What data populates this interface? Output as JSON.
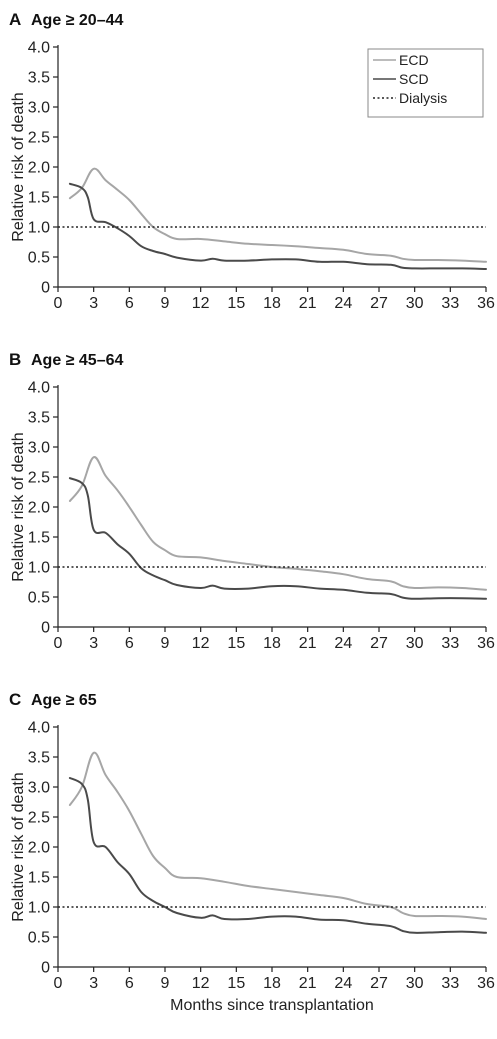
{
  "chart_data": [
    {
      "type": "line",
      "panel": "A",
      "title": "Age ≥ 20–44",
      "xlabel": "",
      "ylabel": "Relative risk of death",
      "xlim": [
        0,
        36
      ],
      "ylim": [
        0,
        4.0
      ],
      "xticks": [
        0,
        3,
        6,
        9,
        12,
        15,
        18,
        21,
        24,
        27,
        30,
        33,
        36
      ],
      "yticks": [
        "0",
        "0.5",
        "1.0",
        "1.5",
        "2.0",
        "2.5",
        "3.0",
        "3.5",
        "4.0"
      ],
      "legend": {
        "placement": "top-right",
        "entries": [
          "ECD",
          "SCD",
          "Dialysis"
        ]
      },
      "series": [
        {
          "name": "ECD",
          "color": "#a6a6a6",
          "style": "solid",
          "x": [
            1,
            2,
            3,
            4,
            5,
            6,
            7,
            8,
            9,
            10,
            12,
            14,
            16,
            18,
            20,
            22,
            24,
            26,
            28,
            29,
            30,
            32,
            34,
            36
          ],
          "y": [
            1.48,
            1.65,
            1.97,
            1.78,
            1.62,
            1.45,
            1.22,
            1.0,
            0.88,
            0.8,
            0.8,
            0.76,
            0.72,
            0.7,
            0.68,
            0.65,
            0.62,
            0.55,
            0.52,
            0.47,
            0.45,
            0.45,
            0.44,
            0.42
          ]
        },
        {
          "name": "SCD",
          "color": "#4a4a4a",
          "style": "solid",
          "x": [
            1,
            2,
            2.5,
            3,
            4,
            5,
            6,
            7,
            8,
            9,
            10,
            12,
            13,
            14,
            16,
            18,
            20,
            22,
            24,
            26,
            28,
            29,
            30,
            32,
            34,
            36
          ],
          "y": [
            1.72,
            1.65,
            1.5,
            1.13,
            1.08,
            0.98,
            0.85,
            0.68,
            0.6,
            0.55,
            0.49,
            0.44,
            0.47,
            0.44,
            0.44,
            0.46,
            0.46,
            0.42,
            0.42,
            0.38,
            0.37,
            0.32,
            0.31,
            0.31,
            0.31,
            0.3
          ]
        },
        {
          "name": "Dialysis",
          "color": "#222222",
          "style": "dotted",
          "x": [
            0,
            36
          ],
          "y": [
            1.0,
            1.0
          ]
        }
      ]
    },
    {
      "type": "line",
      "panel": "B",
      "title": "Age ≥ 45–64",
      "xlabel": "",
      "ylabel": "Relative risk of death",
      "xlim": [
        0,
        36
      ],
      "ylim": [
        0,
        4.0
      ],
      "xticks": [
        0,
        3,
        6,
        9,
        12,
        15,
        18,
        21,
        24,
        27,
        30,
        33,
        36
      ],
      "yticks": [
        "0",
        "0.5",
        "1.0",
        "1.5",
        "2.0",
        "2.5",
        "3.0",
        "3.5",
        "4.0"
      ],
      "series": [
        {
          "name": "ECD",
          "color": "#a6a6a6",
          "style": "solid",
          "x": [
            1,
            2,
            3,
            4,
            5,
            6,
            7,
            8,
            9,
            10,
            12,
            14,
            16,
            18,
            20,
            22,
            24,
            26,
            28,
            29,
            30,
            32,
            34,
            36
          ],
          "y": [
            2.1,
            2.35,
            2.83,
            2.52,
            2.28,
            2.0,
            1.7,
            1.42,
            1.28,
            1.18,
            1.16,
            1.1,
            1.05,
            1.0,
            0.97,
            0.93,
            0.88,
            0.8,
            0.76,
            0.68,
            0.65,
            0.66,
            0.65,
            0.62
          ]
        },
        {
          "name": "SCD",
          "color": "#4a4a4a",
          "style": "solid",
          "x": [
            1,
            2,
            2.5,
            3,
            4,
            5,
            6,
            7,
            8,
            9,
            10,
            12,
            13,
            14,
            16,
            18,
            20,
            22,
            24,
            26,
            28,
            29,
            30,
            32,
            34,
            36
          ],
          "y": [
            2.48,
            2.4,
            2.2,
            1.62,
            1.57,
            1.38,
            1.22,
            0.98,
            0.86,
            0.78,
            0.7,
            0.65,
            0.69,
            0.64,
            0.64,
            0.68,
            0.68,
            0.64,
            0.62,
            0.57,
            0.55,
            0.49,
            0.47,
            0.48,
            0.48,
            0.47
          ]
        },
        {
          "name": "Dialysis",
          "color": "#222222",
          "style": "dotted",
          "x": [
            0,
            36
          ],
          "y": [
            1.0,
            1.0
          ]
        }
      ]
    },
    {
      "type": "line",
      "panel": "C",
      "title": "Age ≥ 65",
      "xlabel": "Months since transplantation",
      "ylabel": "Relative risk of death",
      "xlim": [
        0,
        36
      ],
      "ylim": [
        0,
        4.0
      ],
      "xticks": [
        0,
        3,
        6,
        9,
        12,
        15,
        18,
        21,
        24,
        27,
        30,
        33,
        36
      ],
      "yticks": [
        "0",
        "0.5",
        "1.0",
        "1.5",
        "2.0",
        "2.5",
        "3.0",
        "3.5",
        "4.0"
      ],
      "series": [
        {
          "name": "ECD",
          "color": "#a6a6a6",
          "style": "solid",
          "x": [
            1,
            2,
            3,
            4,
            5,
            6,
            7,
            8,
            9,
            10,
            12,
            14,
            16,
            18,
            20,
            22,
            24,
            26,
            28,
            29,
            30,
            32,
            34,
            36
          ],
          "y": [
            2.7,
            3.0,
            3.57,
            3.2,
            2.92,
            2.6,
            2.22,
            1.85,
            1.65,
            1.5,
            1.48,
            1.42,
            1.35,
            1.3,
            1.25,
            1.2,
            1.15,
            1.05,
            1.0,
            0.9,
            0.85,
            0.85,
            0.84,
            0.8
          ]
        },
        {
          "name": "SCD",
          "color": "#4a4a4a",
          "style": "solid",
          "x": [
            1,
            2,
            2.5,
            3,
            4,
            5,
            6,
            7,
            8,
            9,
            10,
            12,
            13,
            14,
            16,
            18,
            20,
            22,
            24,
            26,
            28,
            29,
            30,
            32,
            34,
            36
          ],
          "y": [
            3.15,
            3.05,
            2.8,
            2.08,
            2.0,
            1.75,
            1.55,
            1.25,
            1.1,
            1.0,
            0.9,
            0.82,
            0.86,
            0.8,
            0.8,
            0.84,
            0.84,
            0.79,
            0.78,
            0.72,
            0.68,
            0.6,
            0.57,
            0.58,
            0.59,
            0.57
          ]
        },
        {
          "name": "Dialysis",
          "color": "#222222",
          "style": "dotted",
          "x": [
            0,
            36
          ],
          "y": [
            1.0,
            1.0
          ]
        }
      ]
    }
  ]
}
